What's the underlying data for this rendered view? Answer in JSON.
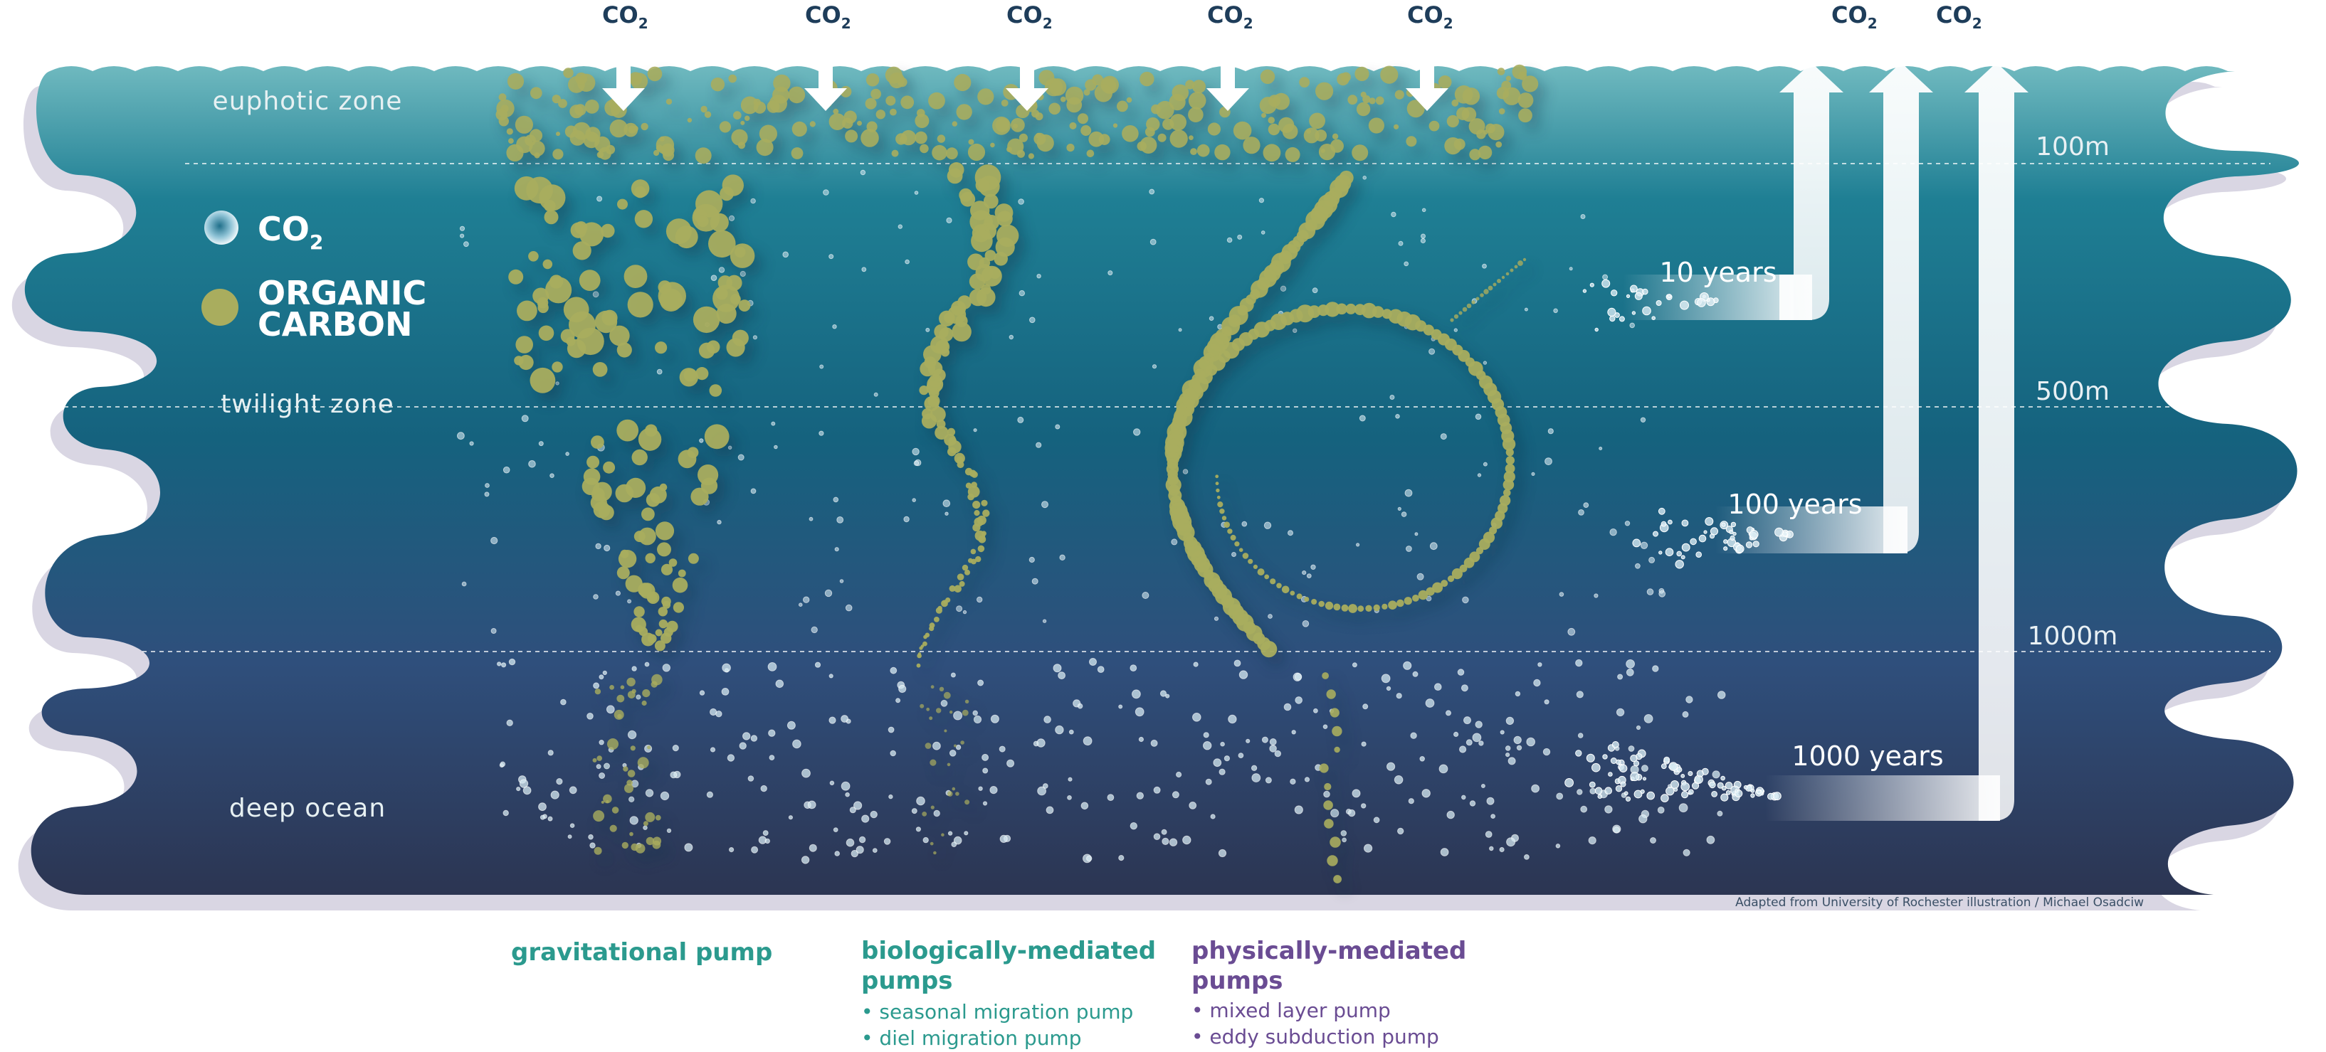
{
  "zones": {
    "euphotic": "euphotic zone",
    "twilight": "twilight zone",
    "deep": "deep ocean"
  },
  "depths": [
    "100m",
    "500m",
    "1000m"
  ],
  "legend": {
    "co2_main": "CO",
    "co2_sub": "2",
    "organic_line1": "ORGANIC",
    "organic_line2": "CARBON"
  },
  "co2_label": {
    "main": "CO",
    "sub": "2"
  },
  "timescales": [
    "10 years",
    "100 years",
    "1000 years"
  ],
  "credit": "Adapted from University of Rochester illustration / Michael Osadciw",
  "pumps": {
    "gravitational": {
      "title": "gravitational pump"
    },
    "biological": {
      "title_line1": "biologically-mediated",
      "title_line2": "pumps",
      "items": [
        "seasonal migration pump",
        "diel migration pump"
      ]
    },
    "physical": {
      "title_line1": "physically-mediated",
      "title_line2": "pumps",
      "items": [
        "mixed layer pump",
        "eddy subduction pump"
      ]
    }
  },
  "colors": {
    "surface": "#6fb9bf",
    "mid": "#15627e",
    "deep": "#2c3552",
    "organic_carbon": "#a9ad5e",
    "co2_bubble": "#d6eaf2",
    "shadow": "#d9d6e3",
    "green_text": "#2b9a8e",
    "purple_text": "#6a4c93"
  }
}
